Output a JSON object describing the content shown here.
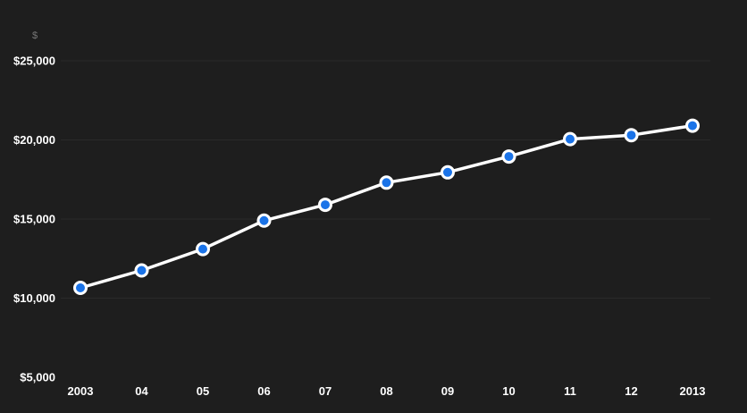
{
  "chart_data": {
    "type": "line",
    "title": "",
    "xlabel": "",
    "ylabel": "$",
    "categories": [
      "2003",
      "04",
      "05",
      "06",
      "07",
      "08",
      "09",
      "10",
      "11",
      "12",
      "2013"
    ],
    "series": [
      {
        "values": [
          10650,
          11750,
          13100,
          14900,
          15900,
          17300,
          17950,
          18950,
          20050,
          20300,
          20900
        ]
      }
    ],
    "ylim": [
      5000,
      25000
    ],
    "yticks": [
      5000,
      10000,
      15000,
      20000,
      25000
    ],
    "ytick_labels": [
      "$5,000",
      "$10,000",
      "$15,000",
      "$20,000",
      "$25,000"
    ],
    "grid": true,
    "legend": "none",
    "colors": {
      "background": "#1e1e1e",
      "line": "#ffffff",
      "marker": "#1a73e8",
      "grid": "#2a2a2a",
      "text": "#ffffff",
      "unit_text": "#777777"
    }
  }
}
